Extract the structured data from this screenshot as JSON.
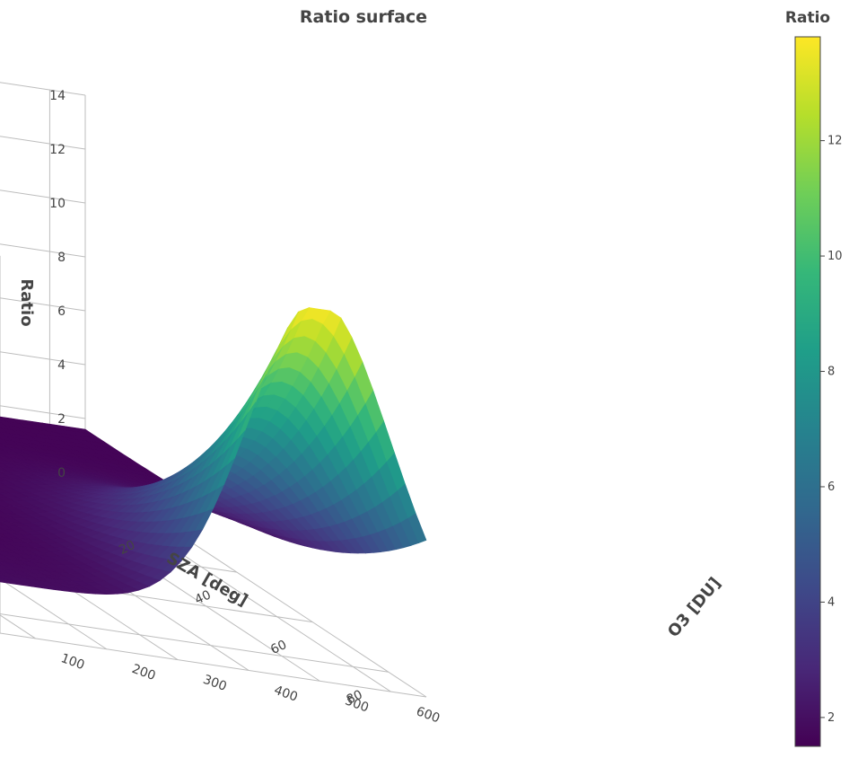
{
  "chart_data": {
    "type": "surface",
    "title": "Ratio surface",
    "x_axis": {
      "label": "SZA [deg]",
      "range": [
        0,
        90
      ],
      "ticks": [
        0,
        20,
        40,
        60,
        80
      ]
    },
    "y_axis": {
      "label": "O3 [DU]",
      "range": [
        50,
        650
      ],
      "ticks": [
        100,
        200,
        300,
        400,
        500,
        600
      ]
    },
    "z_axis": {
      "label": "Ratio",
      "range": [
        0,
        14
      ],
      "ticks": [
        0,
        2,
        4,
        6,
        8,
        10,
        12,
        14
      ]
    },
    "colorbar": {
      "title": "Ratio",
      "colorscale": "Viridis",
      "range": [
        1.5,
        13.8
      ],
      "ticks": [
        2,
        4,
        6,
        8,
        10,
        12
      ]
    },
    "corner_values": [
      {
        "sza": 0,
        "o3": 650,
        "ratio": 1.6
      },
      {
        "sza": 0,
        "o3": 50,
        "ratio": 1.5
      },
      {
        "sza": 90,
        "o3": 650,
        "ratio": 1.9
      },
      {
        "sza": 90,
        "o3": 50,
        "ratio": 1.5
      }
    ],
    "peak": {
      "sza": 90,
      "o3": 500,
      "ratio": 13.8
    },
    "grid": true
  }
}
